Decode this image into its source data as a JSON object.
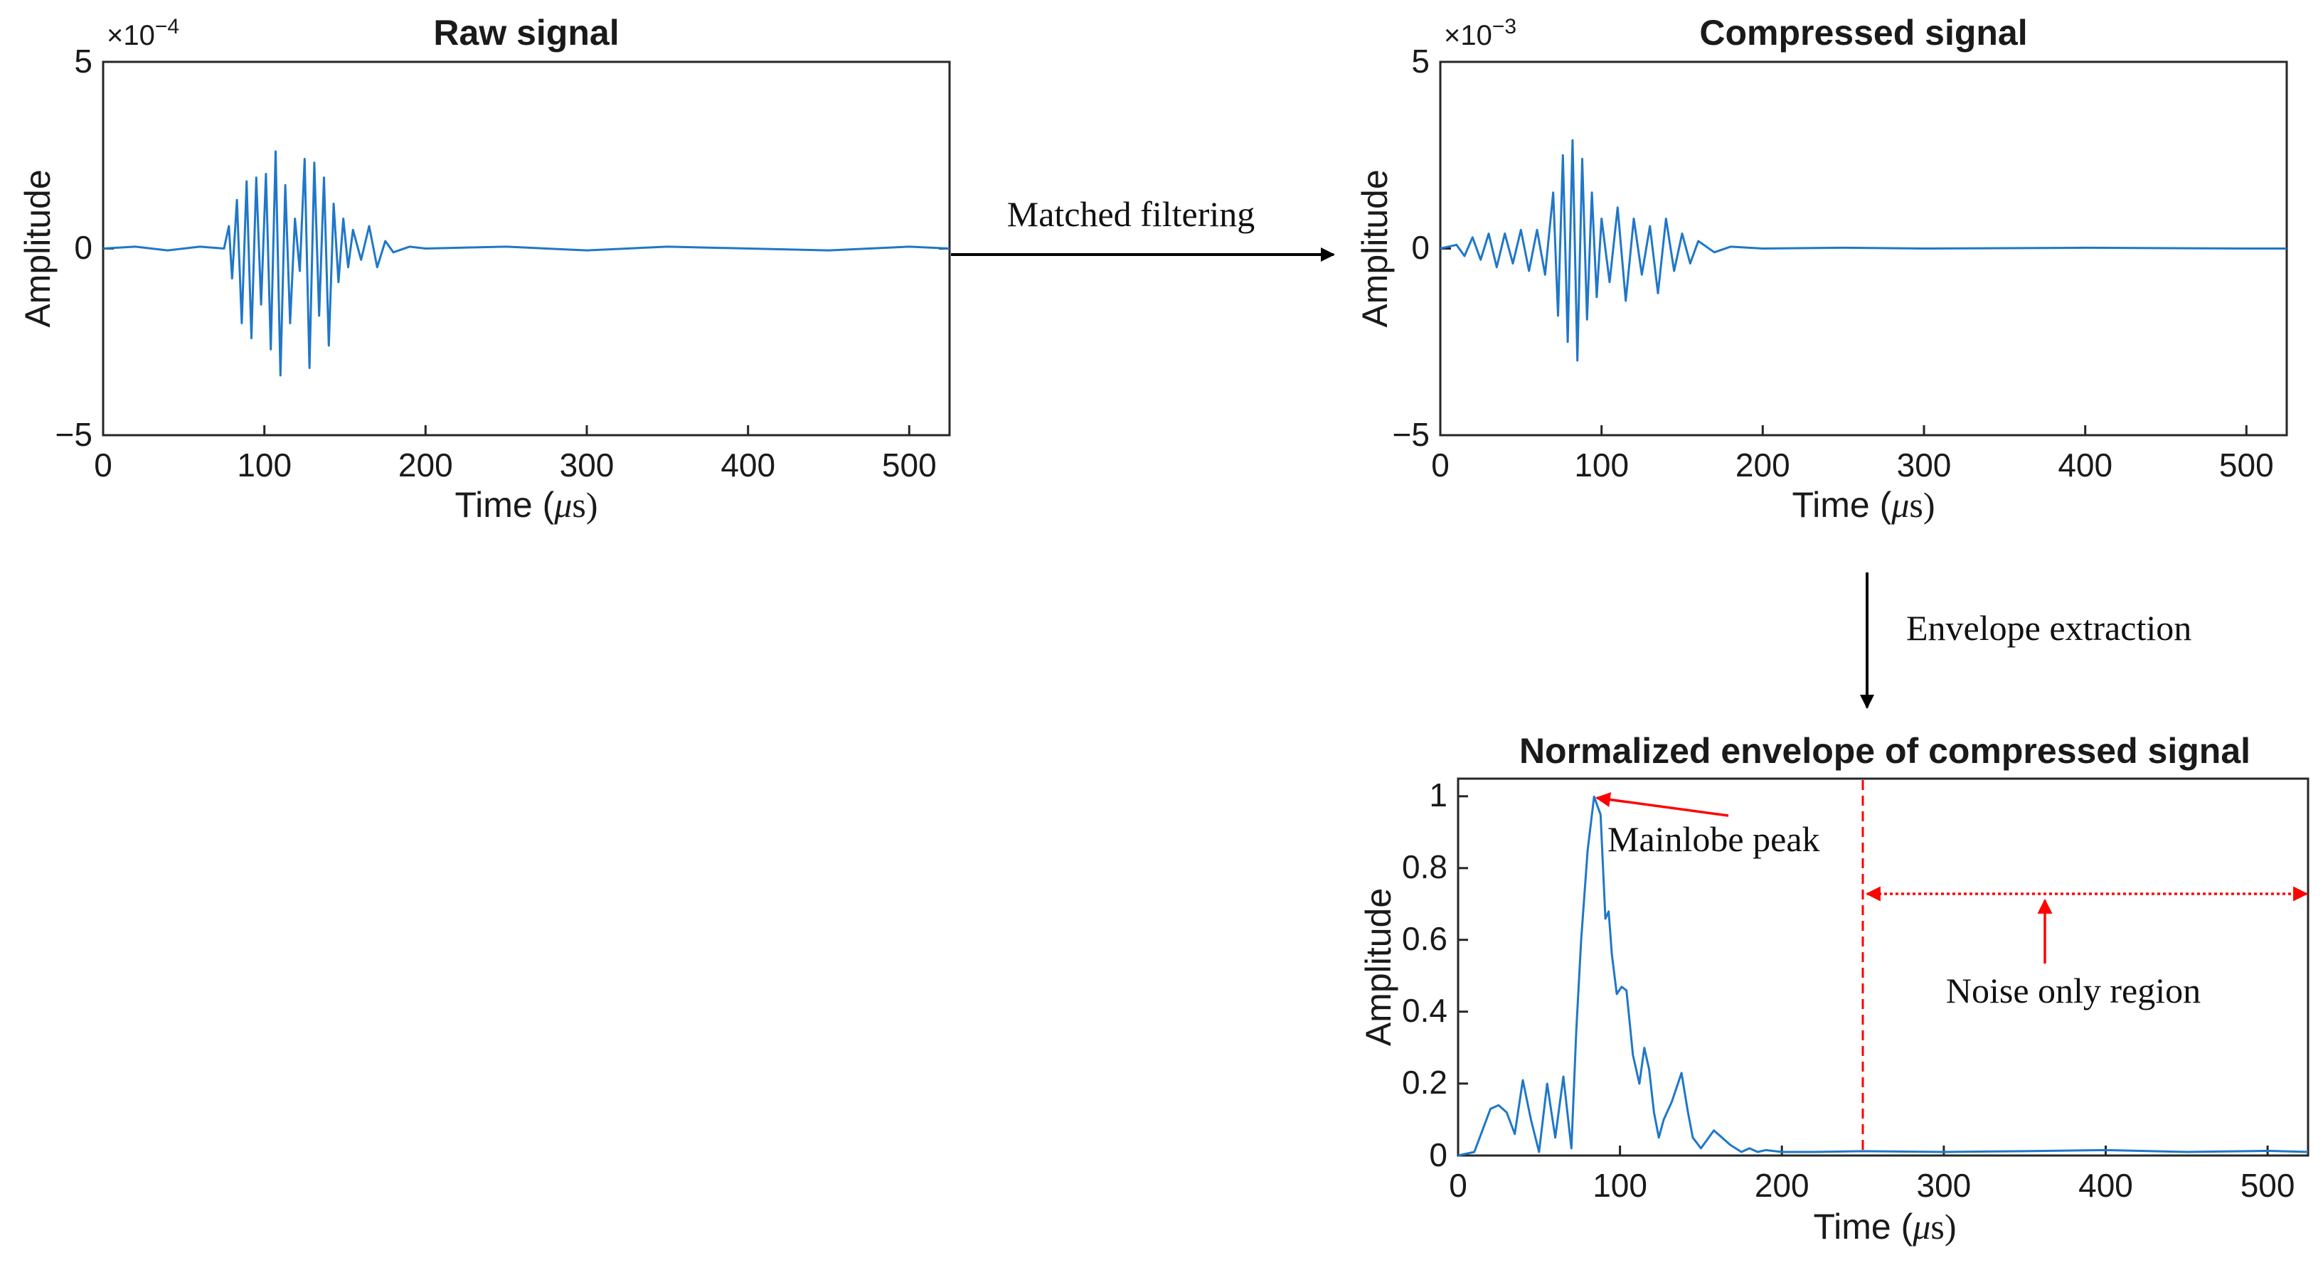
{
  "panels": {
    "raw": {
      "title": "Raw signal",
      "ylabel": "Amplitude",
      "xlabel_main": "Time (",
      "xlabel_mu": "μ",
      "xlabel_unit": "s)",
      "exponent_prefix": "×10",
      "exponent_power": "−4",
      "yticks": [
        "5",
        "0",
        "−5"
      ],
      "xticks": [
        "0",
        "100",
        "200",
        "300",
        "400",
        "500"
      ]
    },
    "compressed": {
      "title": "Compressed signal",
      "ylabel": "Amplitude",
      "xlabel_main": "Time (",
      "xlabel_mu": "μ",
      "xlabel_unit": "s)",
      "exponent_prefix": "×10",
      "exponent_power": "−3",
      "yticks": [
        "5",
        "0",
        "−5"
      ],
      "xticks": [
        "0",
        "100",
        "200",
        "300",
        "400",
        "500"
      ]
    },
    "envelope": {
      "title": "Normalized envelope of compressed signal",
      "ylabel": "Amplitude",
      "xlabel_main": "Time (",
      "xlabel_mu": "μ",
      "xlabel_unit": "s)",
      "yticks": [
        "1",
        "0.8",
        "0.6",
        "0.4",
        "0.2",
        "0"
      ],
      "xticks": [
        "0",
        "100",
        "200",
        "300",
        "400",
        "500"
      ]
    }
  },
  "flow": {
    "matched_filtering": "Matched filtering",
    "envelope_extraction": "Envelope extraction"
  },
  "annotations": {
    "mainlobe_peak": "Mainlobe peak",
    "noise_region": "Noise only region"
  },
  "colors": {
    "trace": "#1f77c9",
    "annotation": "#ff0000",
    "flow_arrow": "#000000"
  },
  "chart_data": [
    {
      "type": "line",
      "title": "Raw signal",
      "xlabel": "Time (μs)",
      "ylabel": "Amplitude",
      "xlim": [
        0,
        525
      ],
      "ylim": [
        -5,
        5
      ],
      "y_scale_exponent": -4,
      "series": [
        {
          "x": [
            0,
            20,
            40,
            60,
            75,
            78,
            80,
            83,
            86,
            89,
            92,
            95,
            98,
            101,
            104,
            107,
            110,
            113,
            116,
            119,
            122,
            125,
            128,
            131,
            134,
            137,
            140,
            143,
            146,
            149,
            152,
            155,
            160,
            165,
            170,
            175,
            180,
            190,
            200,
            250,
            300,
            350,
            400,
            450,
            500,
            525
          ],
          "y": [
            0,
            0.05,
            -0.05,
            0.05,
            0,
            0.6,
            -0.8,
            1.3,
            -2.0,
            1.8,
            -2.4,
            1.9,
            -1.5,
            2.0,
            -2.7,
            2.6,
            -3.4,
            1.7,
            -2.0,
            0.8,
            -0.6,
            2.4,
            -3.2,
            2.3,
            -1.8,
            1.9,
            -2.6,
            1.2,
            -0.9,
            0.8,
            -0.5,
            0.5,
            -0.3,
            0.6,
            -0.5,
            0.2,
            -0.1,
            0.05,
            0,
            0.05,
            -0.05,
            0.05,
            0,
            -0.05,
            0.05,
            0
          ]
        }
      ]
    },
    {
      "type": "line",
      "title": "Compressed signal",
      "xlabel": "Time (μs)",
      "ylabel": "Amplitude",
      "xlim": [
        0,
        525
      ],
      "ylim": [
        -5,
        5
      ],
      "y_scale_exponent": -3,
      "series": [
        {
          "x": [
            0,
            10,
            15,
            20,
            25,
            30,
            35,
            40,
            45,
            50,
            55,
            60,
            65,
            70,
            73,
            76,
            79,
            82,
            85,
            88,
            91,
            94,
            97,
            100,
            105,
            110,
            115,
            120,
            125,
            130,
            135,
            140,
            145,
            150,
            155,
            160,
            170,
            180,
            200,
            250,
            300,
            400,
            500,
            525
          ],
          "y": [
            0,
            0.1,
            -0.2,
            0.3,
            -0.3,
            0.4,
            -0.5,
            0.4,
            -0.4,
            0.5,
            -0.6,
            0.5,
            -0.7,
            1.5,
            -1.8,
            2.5,
            -2.5,
            2.9,
            -3.0,
            2.4,
            -1.9,
            1.5,
            -1.3,
            0.8,
            -0.9,
            1.1,
            -1.4,
            0.8,
            -0.7,
            0.6,
            -1.2,
            0.8,
            -0.6,
            0.4,
            -0.4,
            0.2,
            -0.1,
            0.05,
            0,
            0.02,
            0,
            0.02,
            0,
            0
          ]
        }
      ]
    },
    {
      "type": "line",
      "title": "Normalized envelope of compressed signal",
      "xlabel": "Time (μs)",
      "ylabel": "Amplitude",
      "xlim": [
        0,
        525
      ],
      "ylim": [
        0,
        1.05
      ],
      "series": [
        {
          "x": [
            0,
            10,
            20,
            25,
            30,
            35,
            40,
            45,
            50,
            55,
            60,
            65,
            70,
            73,
            76,
            80,
            84,
            88,
            91,
            93,
            95,
            98,
            101,
            104,
            108,
            112,
            115,
            118,
            121,
            124,
            127,
            132,
            138,
            142,
            145,
            150,
            158,
            163,
            168,
            175,
            180,
            185,
            190,
            200,
            220,
            250,
            300,
            350,
            400,
            450,
            500,
            525
          ],
          "y": [
            0,
            0.01,
            0.13,
            0.14,
            0.12,
            0.06,
            0.21,
            0.1,
            0.01,
            0.2,
            0.05,
            0.22,
            0.02,
            0.35,
            0.6,
            0.85,
            1.0,
            0.95,
            0.66,
            0.68,
            0.56,
            0.45,
            0.47,
            0.46,
            0.28,
            0.2,
            0.3,
            0.24,
            0.12,
            0.05,
            0.1,
            0.15,
            0.23,
            0.12,
            0.05,
            0.02,
            0.07,
            0.05,
            0.03,
            0.01,
            0.02,
            0.01,
            0.015,
            0.01,
            0.01,
            0.012,
            0.01,
            0.012,
            0.015,
            0.01,
            0.013,
            0.01
          ]
        }
      ],
      "annotations": [
        {
          "text": "Mainlobe peak",
          "x": 84,
          "y": 1.0
        },
        {
          "text": "Noise only region",
          "x_start": 250,
          "x_end": 525,
          "y": 0.73
        }
      ],
      "vline_x": 250
    }
  ]
}
